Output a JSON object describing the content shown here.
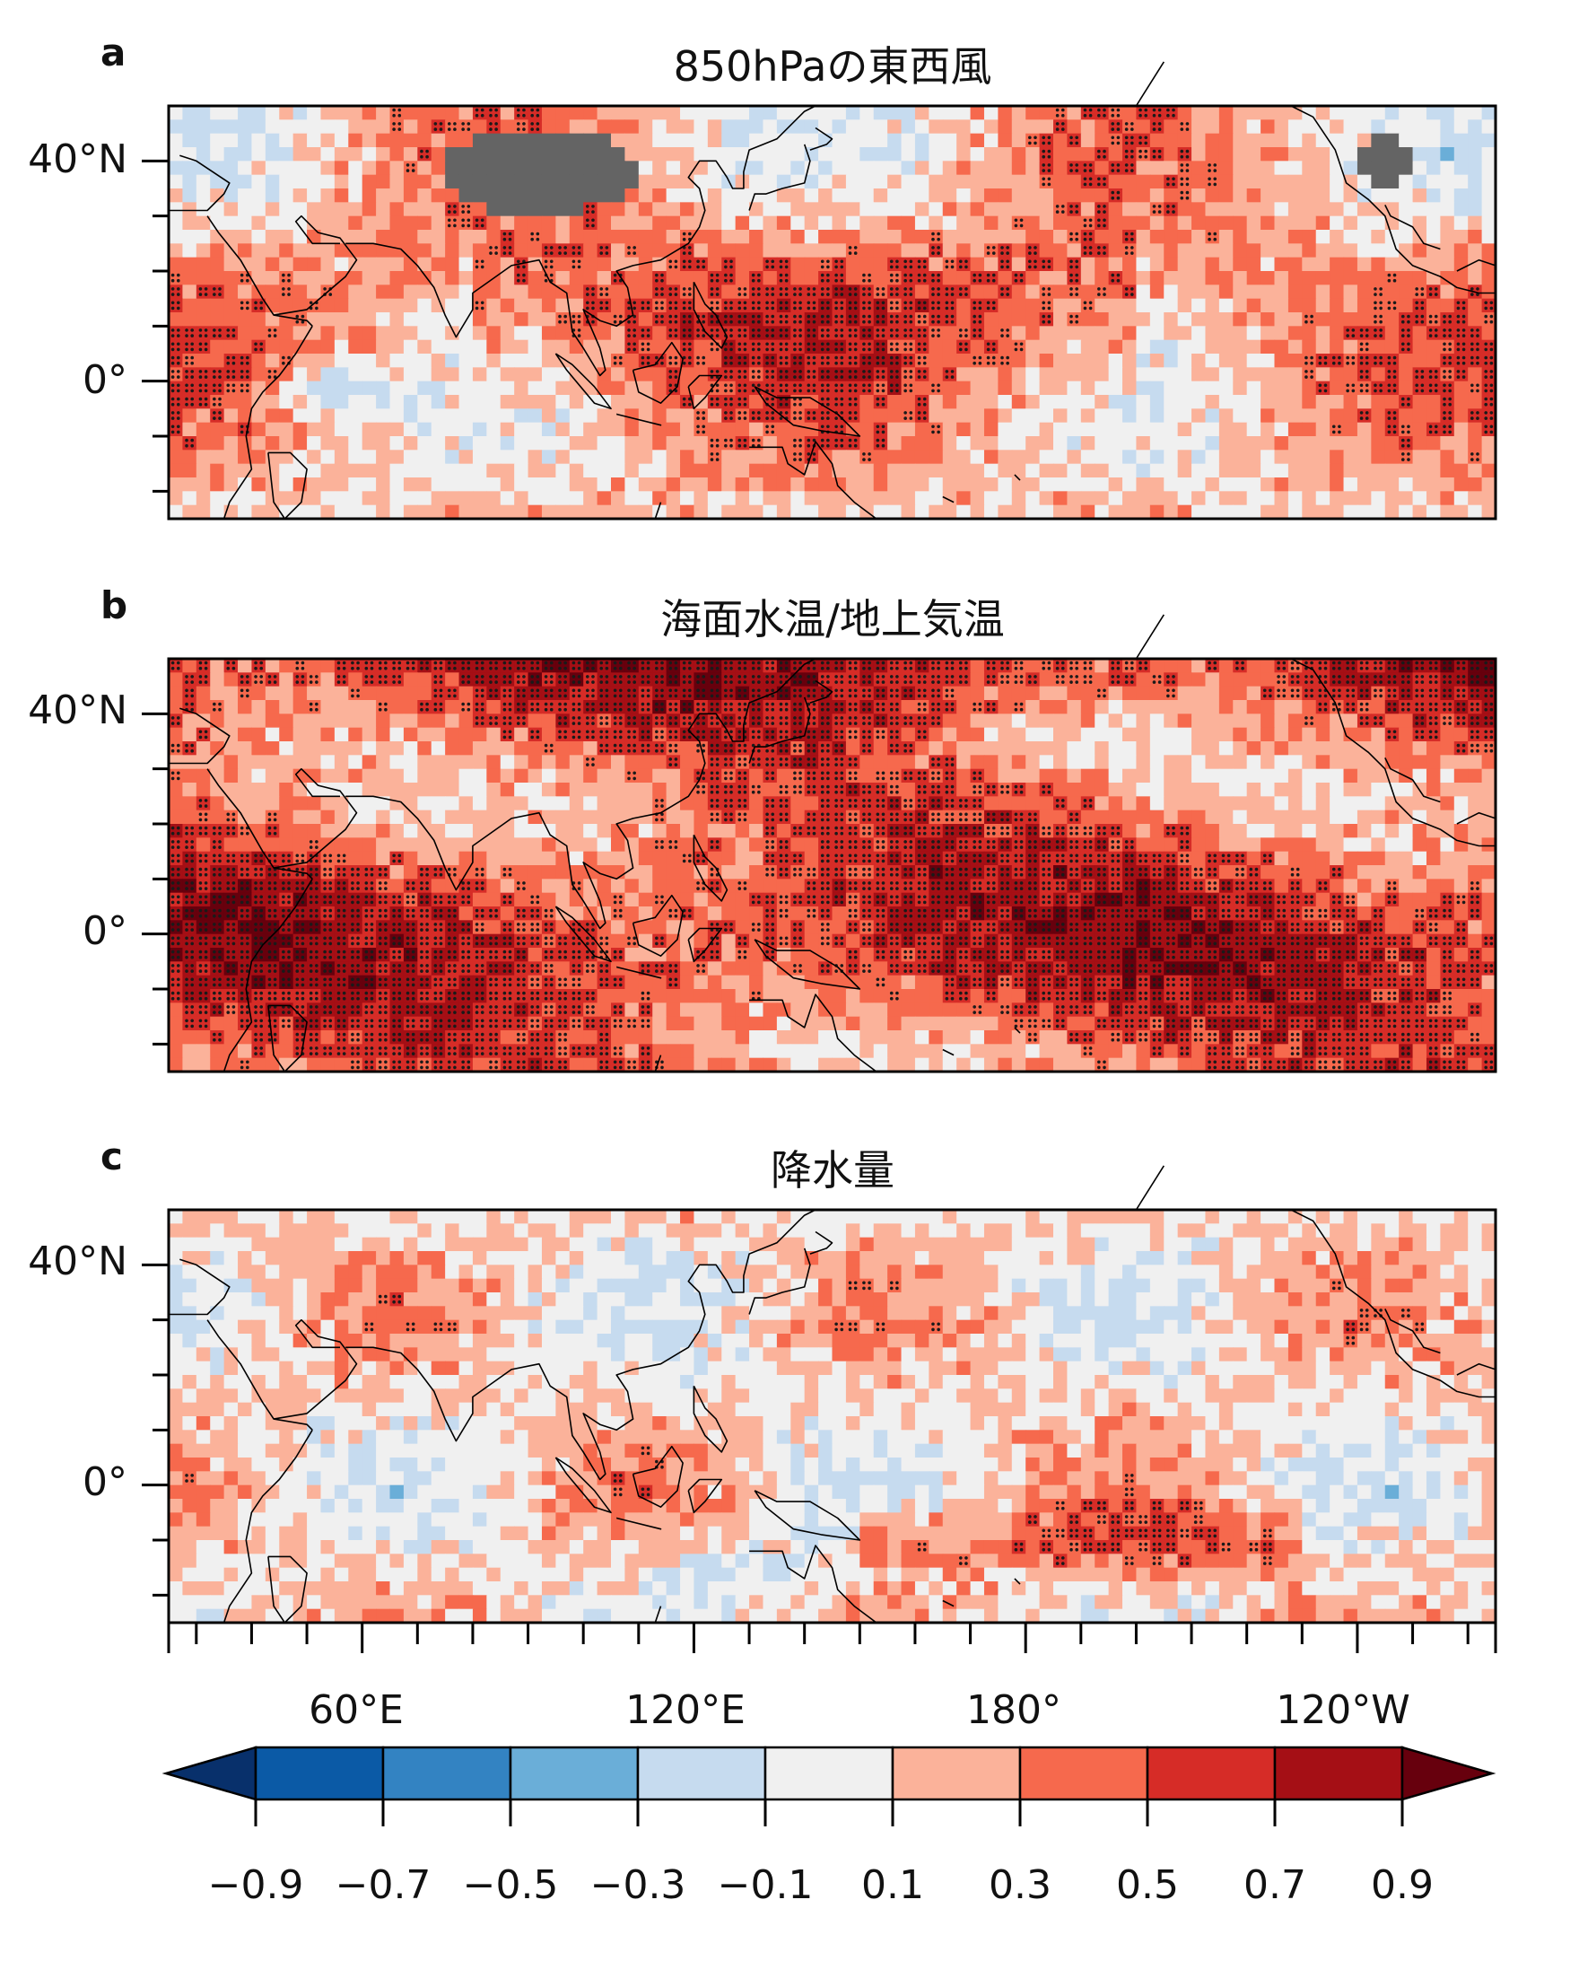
{
  "panels": [
    {
      "id": "a",
      "letter": "a",
      "title": "850hPaの東西風",
      "masked": true
    },
    {
      "id": "b",
      "letter": "b",
      "title": "海面水温/地上気温",
      "masked": false
    },
    {
      "id": "c",
      "letter": "c",
      "title": "降水量",
      "masked": false
    }
  ],
  "map_extent": {
    "lon_min": 25,
    "lon_max": 265,
    "lat_min": -25,
    "lat_max": 50
  },
  "lat_ticks": [
    {
      "value": 40,
      "label": "40°N"
    },
    {
      "value": 0,
      "label": "0°"
    }
  ],
  "lon_ticks": [
    {
      "value": 60,
      "label": "60°E"
    },
    {
      "value": 120,
      "label": "120°E"
    },
    {
      "value": 180,
      "label": "180°"
    },
    {
      "value": 240,
      "label": "120°W"
    }
  ],
  "colorbar": {
    "levels": [
      "−0.9",
      "−0.7",
      "−0.5",
      "−0.3",
      "−0.1",
      "0.1",
      "0.3",
      "0.5",
      "0.7",
      "0.9"
    ],
    "colors": [
      "#08306b",
      "#0b5aa6",
      "#3383c2",
      "#6aaed8",
      "#c6dbef",
      "#f0f0f0",
      "#fbb29a",
      "#f6694d",
      "#d62c27",
      "#a50f15",
      "#67000d"
    ]
  },
  "mask_color": "#646464"
}
